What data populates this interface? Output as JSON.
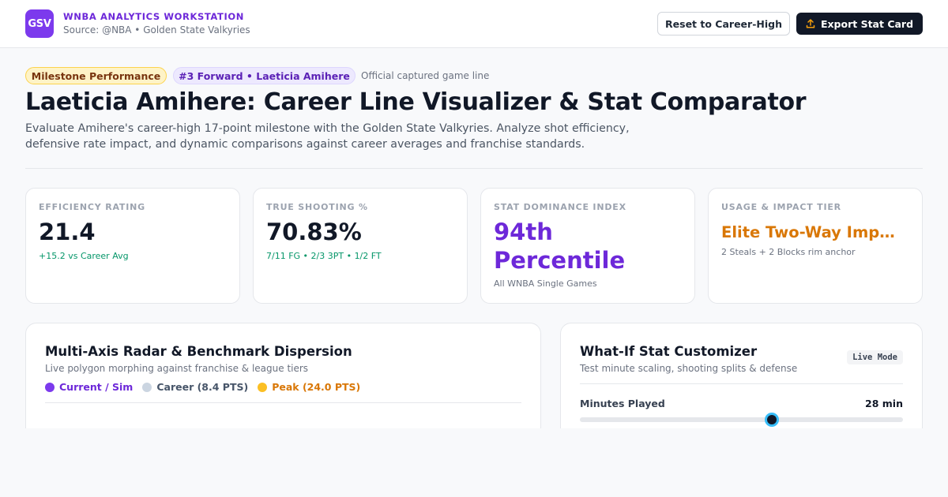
{
  "header": {
    "logo_text": "GSV",
    "app_title": "WNBA ANALYTICS WORKSTATION",
    "source": "Source: @NBA • Golden State Valkyries",
    "reset_label": "Reset to Career-High",
    "export_label": "Export Stat Card",
    "export_icon": "upload-icon"
  },
  "hero": {
    "pill_milestone": "Milestone Performance",
    "pill_player": "#3 Forward • Laeticia Amihere",
    "note": "Official captured game line",
    "title": "Laeticia Amihere: Career Line Visualizer & Stat Comparator",
    "description": "Evaluate Amihere's career-high 17-point milestone with the Golden State Valkyries. Analyze shot efficiency, defensive rate impact, and dynamic comparisons against career averages and franchise standards."
  },
  "stats": [
    {
      "label": "EFFICIENCY RATING",
      "value": "21.4",
      "sub": "+15.2 vs Career Avg"
    },
    {
      "label": "TRUE SHOOTING %",
      "value": "70.83%",
      "sub": "7/11 FG • 2/3 3PT • 1/2 FT"
    },
    {
      "label": "STAT DOMINANCE INDEX",
      "value": "94th Percentile",
      "sub": "All WNBA Single Games"
    },
    {
      "label": "USAGE & IMPACT TIER",
      "value": "Elite Two-Way Impact",
      "sub": "2 Steals + 2 Blocks rim anchor"
    }
  ],
  "radar_panel": {
    "title": "Multi-Axis Radar & Benchmark Dispersion",
    "subtitle": "Live polygon morphing against franchise & league tiers",
    "legend": [
      {
        "label": "Current / Sim",
        "color": "#7c3aed"
      },
      {
        "label": "Career (8.4 PTS)",
        "color": "#cbd5e1"
      },
      {
        "label": "Peak (24.0 PTS)",
        "color": "#fbbf24"
      }
    ]
  },
  "customizer": {
    "title": "What-If Stat Customizer",
    "subtitle": "Test minute scaling, shooting splits & defense",
    "badge": "Live Mode",
    "minutes_label": "Minutes Played",
    "minutes_value": "28 min",
    "minutes_fraction": 0.595
  },
  "colors": {
    "brand": "#7c3aed",
    "accent_orange": "#d97706",
    "positive": "#059669"
  }
}
